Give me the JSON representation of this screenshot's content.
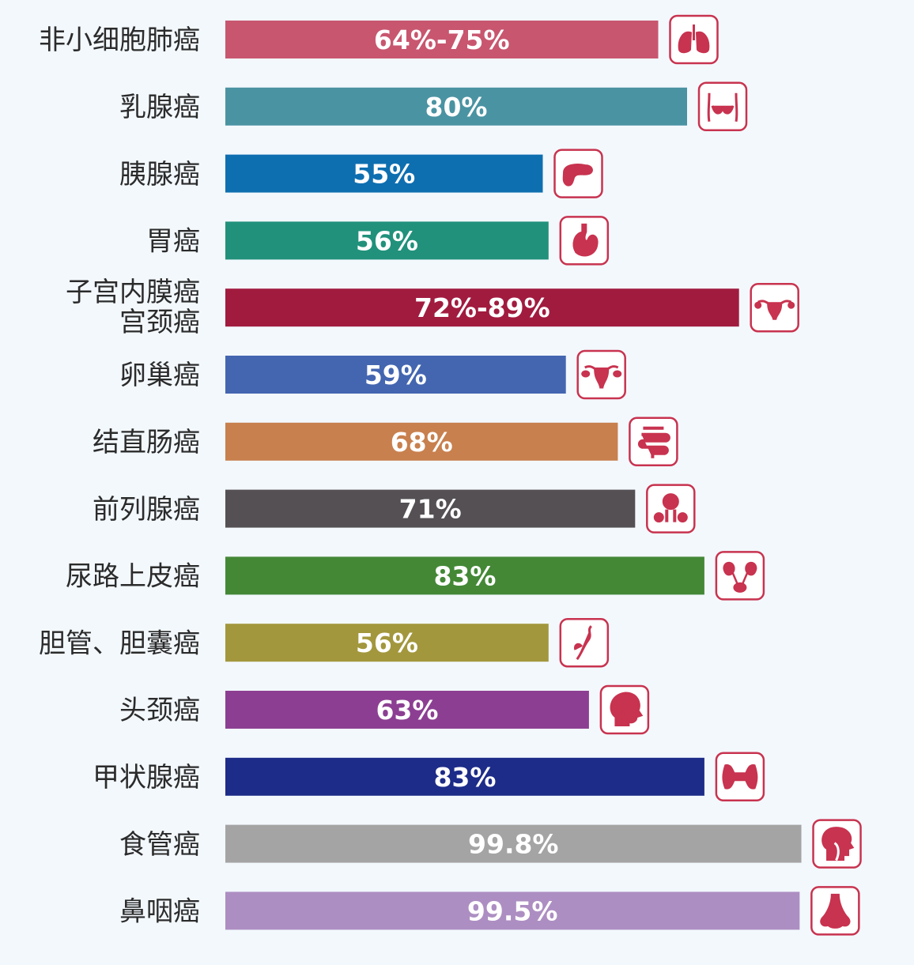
{
  "chart_data": {
    "type": "bar",
    "orientation": "horizontal",
    "grid": false,
    "legend": "none",
    "icon_color": "#c8334f",
    "categories": [
      {
        "lines": [
          "非小细胞肺癌"
        ],
        "value": [
          64,
          75
        ],
        "label": "64%-75%",
        "color": "#c8566f",
        "icon": "lungs-icon"
      },
      {
        "lines": [
          "乳腺癌"
        ],
        "value": 80,
        "label": "80%",
        "color": "#4a93a2",
        "icon": "breast-icon"
      },
      {
        "lines": [
          "胰腺癌"
        ],
        "value": 55,
        "label": "55%",
        "color": "#0e6fb0",
        "icon": "pancreas-icon"
      },
      {
        "lines": [
          "胃癌"
        ],
        "value": 56,
        "label": "56%",
        "color": "#21917b",
        "icon": "stomach-icon"
      },
      {
        "lines": [
          "子宫内膜癌",
          "宫颈癌"
        ],
        "value": [
          72,
          89
        ],
        "label": "72%-89%",
        "color": "#a11b3f",
        "icon": "uterus-icon"
      },
      {
        "lines": [
          "卵巢癌"
        ],
        "value": 59,
        "label": "59%",
        "color": "#4466b0",
        "icon": "ovary-icon"
      },
      {
        "lines": [
          "结直肠癌"
        ],
        "value": 68,
        "label": "68%",
        "color": "#c8804e",
        "icon": "intestine-icon"
      },
      {
        "lines": [
          "前列腺癌"
        ],
        "value": 71,
        "label": "71%",
        "color": "#545054",
        "icon": "prostate-icon"
      },
      {
        "lines": [
          "尿路上皮癌"
        ],
        "value": 83,
        "label": "83%",
        "color": "#448836",
        "icon": "kidney-icon"
      },
      {
        "lines": [
          "胆管、胆囊癌"
        ],
        "value": 56,
        "label": "56%",
        "color": "#a3973d",
        "icon": "bile-duct-icon"
      },
      {
        "lines": [
          "头颈癌"
        ],
        "value": 63,
        "label": "63%",
        "color": "#8c3f92",
        "icon": "head-neck-icon"
      },
      {
        "lines": [
          "甲状腺癌"
        ],
        "value": 83,
        "label": "83%",
        "color": "#1d2c88",
        "icon": "thyroid-icon"
      },
      {
        "lines": [
          "食管癌"
        ],
        "value": 99.8,
        "label": "99.8%",
        "color": "#a5a4a5",
        "icon": "esophagus-icon"
      },
      {
        "lines": [
          "鼻咽癌"
        ],
        "value": 99.5,
        "label": "99.5%",
        "color": "#ad8ec2",
        "icon": "nose-icon"
      }
    ]
  }
}
